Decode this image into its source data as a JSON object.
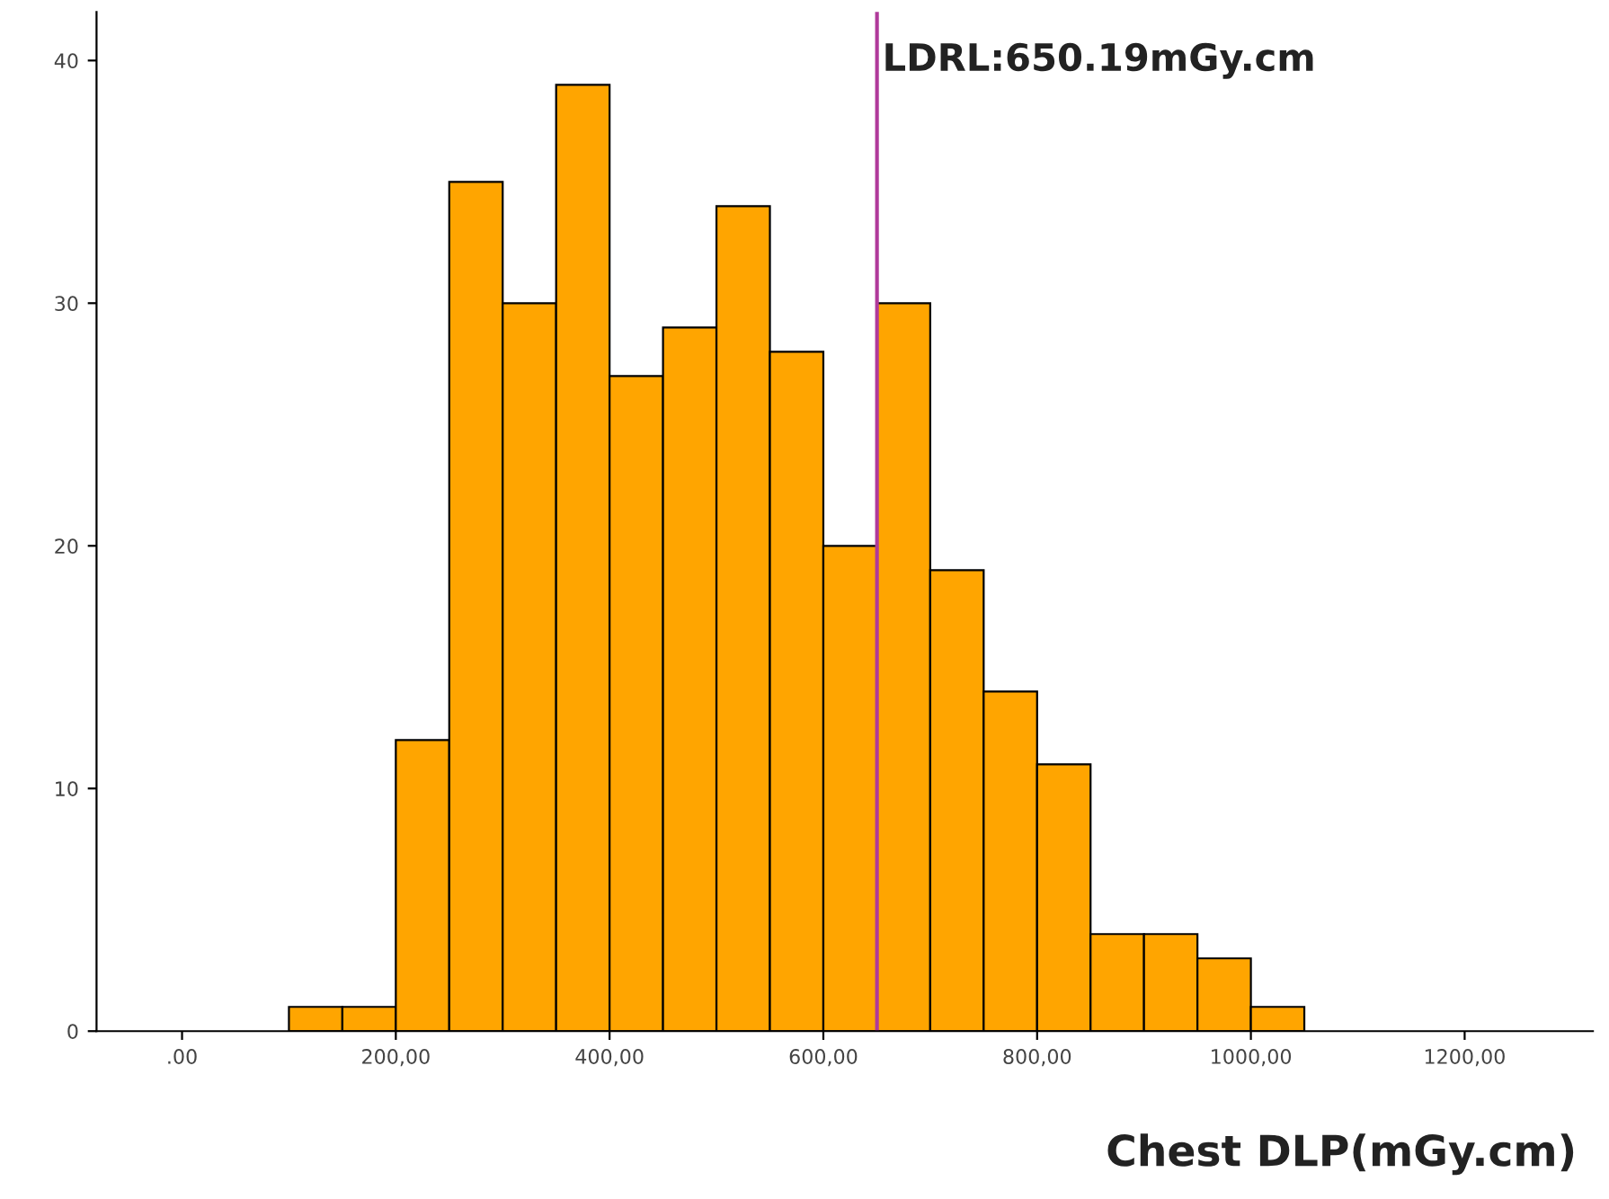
{
  "chart_data": {
    "type": "histogram",
    "xlabel": "Chest DLP(mGy.cm)",
    "bins": [
      100,
      150,
      200,
      250,
      300,
      350,
      400,
      450,
      500,
      550,
      600,
      650,
      700,
      750,
      800,
      850,
      900,
      950,
      1000,
      1050
    ],
    "values": [
      1,
      1,
      12,
      35,
      30,
      39,
      27,
      29,
      34,
      28,
      20,
      30,
      19,
      14,
      11,
      4,
      4,
      3,
      1
    ],
    "color": "#ffa500",
    "xlim": [
      -80,
      1320
    ],
    "xticks": [
      {
        "value": 0,
        "label": ".00"
      },
      {
        "value": 200,
        "label": "200,00"
      },
      {
        "value": 400,
        "label": "400,00"
      },
      {
        "value": 600,
        "label": "600,00"
      },
      {
        "value": 800,
        "label": "800,00"
      },
      {
        "value": 1000,
        "label": "1000,00"
      },
      {
        "value": 1200,
        "label": "1200,00"
      }
    ],
    "ylim": [
      0,
      42
    ],
    "yticks": [
      0,
      10,
      20,
      30,
      40
    ],
    "ref_lines": [
      {
        "axis": "x",
        "value": 650.19,
        "label": "LDRL:650.19mGy.cm",
        "color": "#b03a9a"
      }
    ],
    "grid": false,
    "legend": false
  }
}
